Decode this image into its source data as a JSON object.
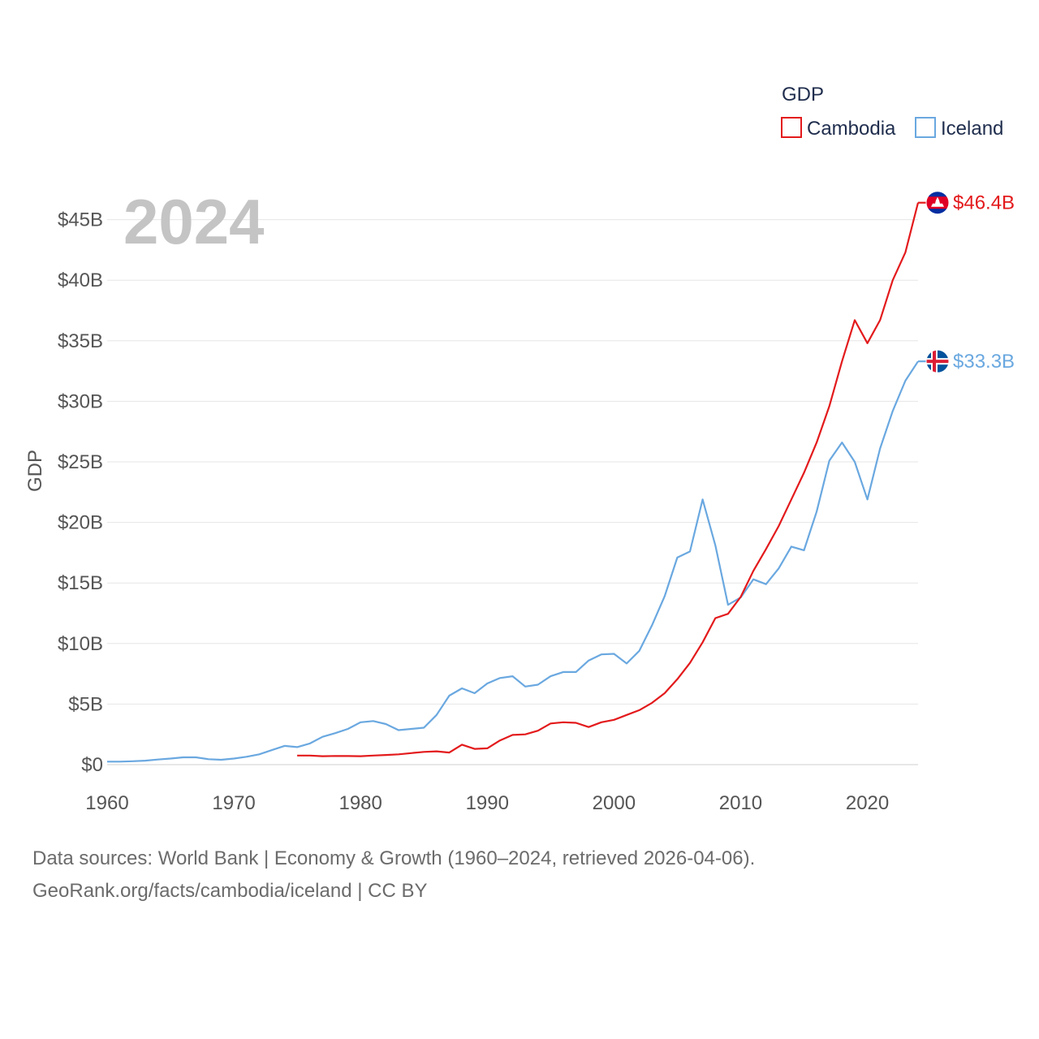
{
  "chart_data": {
    "type": "line",
    "title": "GDP",
    "year_label": "2024",
    "ylabel": "GDP",
    "xlim": [
      1960,
      2024
    ],
    "ylim": [
      0,
      47
    ],
    "x_ticks": [
      1960,
      1970,
      1980,
      1990,
      2000,
      2010,
      2020
    ],
    "y_ticks": [
      0,
      5,
      10,
      15,
      20,
      25,
      30,
      35,
      40,
      45
    ],
    "y_tick_labels": [
      "$0",
      "$5B",
      "$10B",
      "$15B",
      "$20B",
      "$25B",
      "$30B",
      "$35B",
      "$40B",
      "$45B"
    ],
    "legend_title": "GDP",
    "grid": true,
    "series": [
      {
        "name": "Cambodia",
        "color": "#e31a1c",
        "end_label": "$46.4B",
        "flag_icon": "cambodia-flag-icon",
        "x": [
          1975,
          1976,
          1977,
          1978,
          1979,
          1980,
          1981,
          1982,
          1983,
          1984,
          1985,
          1986,
          1987,
          1988,
          1989,
          1990,
          1991,
          1992,
          1993,
          1994,
          1995,
          1996,
          1997,
          1998,
          1999,
          2000,
          2001,
          2002,
          2003,
          2004,
          2005,
          2006,
          2007,
          2008,
          2009,
          2010,
          2011,
          2012,
          2013,
          2014,
          2015,
          2016,
          2017,
          2018,
          2019,
          2020,
          2021,
          2022,
          2023,
          2024
        ],
        "values": [
          0.75,
          0.75,
          0.7,
          0.72,
          0.71,
          0.7,
          0.75,
          0.8,
          0.85,
          0.95,
          1.05,
          1.1,
          1.0,
          1.65,
          1.3,
          1.35,
          2.0,
          2.45,
          2.5,
          2.8,
          3.4,
          3.5,
          3.45,
          3.1,
          3.5,
          3.7,
          4.1,
          4.5,
          5.1,
          5.9,
          7.05,
          8.4,
          10.1,
          12.1,
          12.45,
          13.85,
          16.0,
          17.8,
          19.7,
          21.9,
          24.1,
          26.6,
          29.6,
          33.3,
          36.7,
          34.8,
          36.7,
          40.0,
          42.3,
          46.4
        ]
      },
      {
        "name": "Iceland",
        "color": "#6aa8e0",
        "end_label": "$33.3B",
        "flag_icon": "iceland-flag-icon",
        "x": [
          1960,
          1961,
          1962,
          1963,
          1964,
          1965,
          1966,
          1967,
          1968,
          1969,
          1970,
          1971,
          1972,
          1973,
          1974,
          1975,
          1976,
          1977,
          1978,
          1979,
          1980,
          1981,
          1982,
          1983,
          1984,
          1985,
          1986,
          1987,
          1988,
          1989,
          1990,
          1991,
          1992,
          1993,
          1994,
          1995,
          1996,
          1997,
          1998,
          1999,
          2000,
          2001,
          2002,
          2003,
          2004,
          2005,
          2006,
          2007,
          2008,
          2009,
          2010,
          2011,
          2012,
          2013,
          2014,
          2015,
          2016,
          2017,
          2018,
          2019,
          2020,
          2021,
          2022,
          2023,
          2024
        ],
        "values": [
          0.25,
          0.25,
          0.28,
          0.33,
          0.42,
          0.5,
          0.6,
          0.6,
          0.45,
          0.4,
          0.5,
          0.65,
          0.85,
          1.2,
          1.55,
          1.45,
          1.75,
          2.3,
          2.6,
          2.95,
          3.5,
          3.6,
          3.35,
          2.85,
          2.95,
          3.05,
          4.1,
          5.7,
          6.3,
          5.9,
          6.7,
          7.15,
          7.3,
          6.45,
          6.6,
          7.3,
          7.65,
          7.65,
          8.6,
          9.1,
          9.15,
          8.35,
          9.4,
          11.5,
          13.9,
          17.1,
          17.6,
          21.9,
          18.1,
          13.2,
          13.8,
          15.3,
          14.9,
          16.2,
          18.0,
          17.7,
          20.9,
          25.1,
          26.6,
          25.0,
          21.9,
          26.1,
          29.2,
          31.7,
          33.3
        ]
      }
    ]
  },
  "source": {
    "line1": "Data sources: World Bank | Economy & Growth (1960–2024, retrieved 2026-04-06).",
    "line2": "GeoRank.org/facts/cambodia/iceland | CC BY"
  }
}
